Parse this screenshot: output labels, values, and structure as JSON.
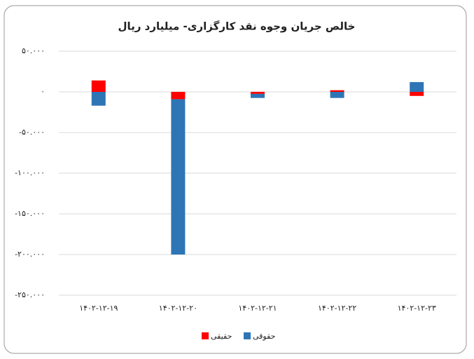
{
  "chart_data": {
    "type": "stacked-bar",
    "title": "خالص جریان وجوه نقد کارگزاری- میلیارد ریال",
    "categories": [
      "۱۴۰۲-۱۲-۱۹",
      "۱۴۰۲-۱۲-۲۰",
      "۱۴۰۲-۱۲-۲۱",
      "۱۴۰۲-۱۲-۲۲",
      "۱۴۰۲-۱۲-۲۳"
    ],
    "series": [
      {
        "name": "حقیقی",
        "color": "#ff0000",
        "values": [
          14000,
          -9000,
          -2500,
          2000,
          -5000
        ]
      },
      {
        "name": "حقوقی",
        "color": "#2e75b6",
        "values": [
          -17000,
          -191000,
          -5000,
          -7500,
          12000
        ]
      }
    ],
    "ylim": [
      -250000,
      50000
    ],
    "yticks": [
      {
        "value": -250000,
        "label": "-۲۵۰.۰۰۰"
      },
      {
        "value": -200000,
        "label": "-۲۰۰.۰۰۰"
      },
      {
        "value": -150000,
        "label": "-۱۵۰.۰۰۰"
      },
      {
        "value": -100000,
        "label": "-۱۰۰.۰۰۰"
      },
      {
        "value": -50000,
        "label": "-۵۰.۰۰۰"
      },
      {
        "value": 0,
        "label": "۰"
      },
      {
        "value": 50000,
        "label": "۵۰.۰۰۰"
      }
    ],
    "grid": true,
    "legend": "bottom"
  }
}
